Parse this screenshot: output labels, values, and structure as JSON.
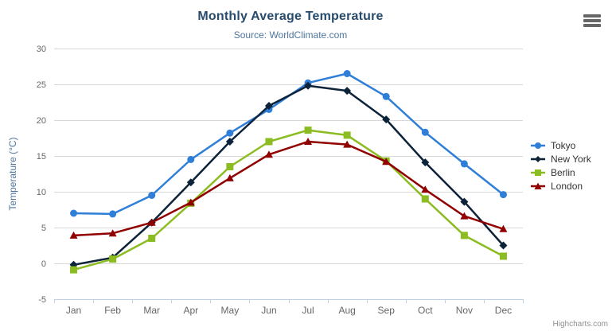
{
  "header": {
    "title": "Monthly Average Temperature",
    "subtitle": "Source: WorldClimate.com"
  },
  "context_menu": {
    "icon": "hamburger-icon"
  },
  "credits": {
    "label": "Highcharts.com"
  },
  "chart_data": {
    "type": "line",
    "title": "Monthly Average Temperature",
    "subtitle": "Source: WorldClimate.com",
    "categories": [
      "Jan",
      "Feb",
      "Mar",
      "Apr",
      "May",
      "Jun",
      "Jul",
      "Aug",
      "Sep",
      "Oct",
      "Nov",
      "Dec"
    ],
    "series": [
      {
        "name": "Tokyo",
        "color": "#2f7ed8",
        "marker": "circle",
        "values": [
          7.0,
          6.9,
          9.5,
          14.5,
          18.2,
          21.5,
          25.2,
          26.5,
          23.3,
          18.3,
          13.9,
          9.6
        ]
      },
      {
        "name": "New York",
        "color": "#0d233a",
        "marker": "diamond",
        "values": [
          -0.2,
          0.8,
          5.7,
          11.3,
          17.0,
          22.0,
          24.8,
          24.1,
          20.1,
          14.1,
          8.6,
          2.5
        ]
      },
      {
        "name": "Berlin",
        "color": "#8bbc21",
        "marker": "square",
        "values": [
          -0.9,
          0.6,
          3.5,
          8.4,
          13.5,
          17.0,
          18.6,
          17.9,
          14.3,
          9.0,
          3.9,
          1.0
        ]
      },
      {
        "name": "London",
        "color": "#910000",
        "marker": "triangle",
        "values": [
          3.9,
          4.2,
          5.7,
          8.5,
          11.9,
          15.2,
          17.0,
          16.6,
          14.2,
          10.3,
          6.6,
          4.8
        ]
      }
    ],
    "xlabel": "",
    "ylabel": "Temperature (°C)",
    "ylim": [
      -5,
      30
    ],
    "y_tick_interval": 5,
    "y_tick_labels": [
      "-5",
      "0",
      "5",
      "10",
      "15",
      "20",
      "25",
      "30"
    ],
    "grid": true,
    "legend_position": "right"
  },
  "colors": {
    "title": "#274b6d",
    "subtitle": "#4d759e",
    "axis_title": "#4d759e",
    "tick_label": "#666666",
    "grid_line": "#d8d8d8",
    "axis_line": "#c0d0e0",
    "legend_text": "#333333",
    "credits": "#909090",
    "background": "#ffffff"
  }
}
